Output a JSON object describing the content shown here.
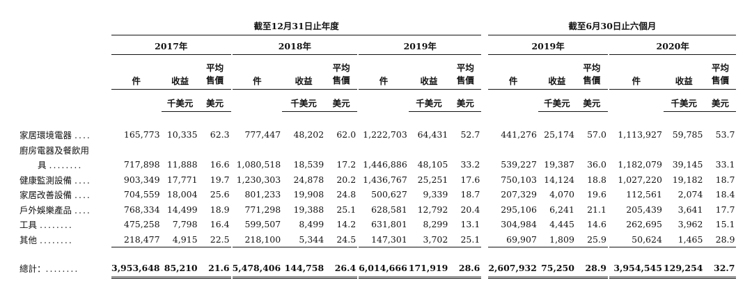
{
  "period_headers": [
    "截至12月31日止年度",
    "截至6月30日止六個月"
  ],
  "years": [
    "2017年",
    "2018年",
    "2019年",
    "2019年",
    "2020年"
  ],
  "col_labels": {
    "units": "件",
    "revenue": "收益",
    "avg_price_line1": "平均",
    "avg_price_line2": "售價"
  },
  "unit_labels": {
    "revenue": "千美元",
    "avg_price": "美元"
  },
  "rows": [
    {
      "label": "家居環境電器",
      "dots": "....",
      "values": [
        "165,773",
        "10,335",
        "62.3",
        "777,447",
        "48,202",
        "62.0",
        "1,222,703",
        "64,431",
        "52.7",
        "441,276",
        "25,174",
        "57.0",
        "1,113,927",
        "59,785",
        "53.7"
      ]
    },
    {
      "label_line1": "廚房電器及餐飲用",
      "label": "具",
      "dots": "........",
      "values": [
        "717,898",
        "11,888",
        "16.6",
        "1,080,518",
        "18,539",
        "17.2",
        "1,446,886",
        "48,105",
        "33.2",
        "539,227",
        "19,387",
        "36.0",
        "1,182,079",
        "39,145",
        "33.1"
      ]
    },
    {
      "label": "健康監測設備",
      "dots": "....",
      "values": [
        "903,349",
        "17,771",
        "19.7",
        "1,230,303",
        "24,878",
        "20.2",
        "1,436,767",
        "25,251",
        "17.6",
        "750,103",
        "14,124",
        "18.8",
        "1,027,220",
        "19,182",
        "18.7"
      ]
    },
    {
      "label": "家居改善設備",
      "dots": "....",
      "values": [
        "704,559",
        "18,004",
        "25.6",
        "801,233",
        "19,908",
        "24.8",
        "500,627",
        "9,339",
        "18.7",
        "207,329",
        "4,070",
        "19.6",
        "112,561",
        "2,074",
        "18.4"
      ]
    },
    {
      "label": "戶外娛樂產品",
      "dots": "....",
      "values": [
        "768,334",
        "14,499",
        "18.9",
        "771,298",
        "19,388",
        "25.1",
        "628,581",
        "12,792",
        "20.4",
        "295,106",
        "6,241",
        "21.1",
        "205,439",
        "3,641",
        "17.7"
      ]
    },
    {
      "label": "工具",
      "dots": "........",
      "values": [
        "475,258",
        "7,798",
        "16.4",
        "599,507",
        "8,499",
        "14.2",
        "631,801",
        "8,299",
        "13.1",
        "304,984",
        "4,445",
        "14.6",
        "262,695",
        "3,962",
        "15.1"
      ]
    },
    {
      "label": "其他",
      "dots": "........",
      "values": [
        "218,477",
        "4,915",
        "22.5",
        "218,100",
        "5,344",
        "24.5",
        "147,301",
        "3,702",
        "25.1",
        "69,907",
        "1,809",
        "25.9",
        "50,624",
        "1,465",
        "28.9"
      ]
    }
  ],
  "total": {
    "label": "總計：",
    "dots": "........",
    "values": [
      "3,953,648",
      "85,210",
      "21.6",
      "5,478,406",
      "144,758",
      "26.4",
      "6,014,666",
      "171,919",
      "28.6",
      "2,607,932",
      "75,250",
      "28.9",
      "3,954,545",
      "129,254",
      "32.7"
    ]
  }
}
